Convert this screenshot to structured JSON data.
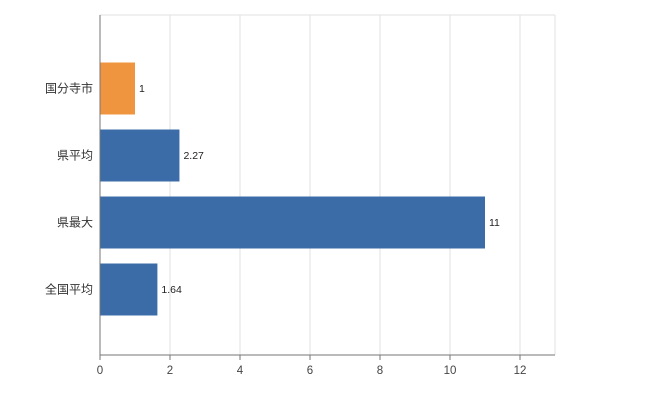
{
  "chart_data": {
    "type": "bar",
    "orientation": "horizontal",
    "title": "",
    "xlabel": "",
    "ylabel": "",
    "categories": [
      "国分寺市",
      "県平均",
      "県最大",
      "全国平均"
    ],
    "values": [
      1,
      2.27,
      11,
      1.64
    ],
    "value_labels": [
      "1",
      "2.27",
      "11",
      "1.64"
    ],
    "bar_colors": [
      "#f0953f",
      "#3b6ca8",
      "#3b6ca8",
      "#3b6ca8"
    ],
    "xlim": [
      0,
      13
    ],
    "xticks": [
      0,
      2,
      4,
      6,
      8,
      10,
      12
    ],
    "xtick_labels": [
      "0",
      "2",
      "4",
      "6",
      "8",
      "10",
      "12"
    ],
    "grid": "vertical",
    "legend": "none",
    "colors": {
      "grid": "#e2e2e2",
      "axis": "#767676",
      "tick_label": "#444444",
      "category_label": "#333333",
      "value_label": "#222222",
      "background": "#ffffff"
    }
  }
}
